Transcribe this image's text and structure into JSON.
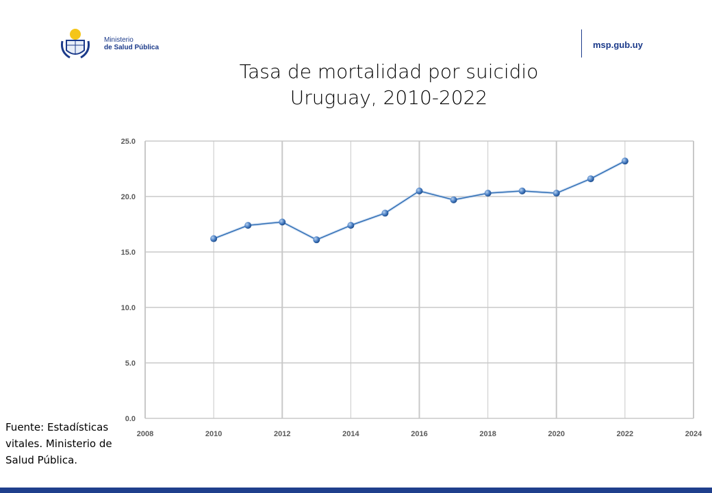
{
  "header": {
    "logo_line1": "Ministerio",
    "logo_line2": "de Salud Pública",
    "site": "msp.gub.uy"
  },
  "source_note": "Fuente: Estadísticas vitales. Ministerio de Salud Pública.",
  "colors": {
    "series": "#2e6db4",
    "marker": "#4a7fc4",
    "grid": "#c8c8c8",
    "brand": "#1b3a8a"
  },
  "chart_data": {
    "type": "line",
    "title": "Tasa de mortalidad por suicidio",
    "subtitle": "Uruguay, 2010-2022",
    "xlabel": "",
    "ylabel": "",
    "xlim": [
      2008,
      2024
    ],
    "ylim": [
      0,
      25
    ],
    "xticks": [
      "2008",
      "2010",
      "2012",
      "2014",
      "2016",
      "2018",
      "2020",
      "2022",
      "2024"
    ],
    "yticks": [
      "0.0",
      "5.0",
      "10.0",
      "15.0",
      "20.0",
      "25.0"
    ],
    "grid": true,
    "x": [
      2010,
      2011,
      2012,
      2013,
      2014,
      2015,
      2016,
      2017,
      2018,
      2019,
      2020,
      2021,
      2022
    ],
    "values": [
      16.2,
      17.4,
      17.7,
      16.1,
      17.4,
      18.5,
      20.5,
      19.7,
      20.3,
      20.5,
      20.3,
      21.6,
      23.2
    ]
  }
}
